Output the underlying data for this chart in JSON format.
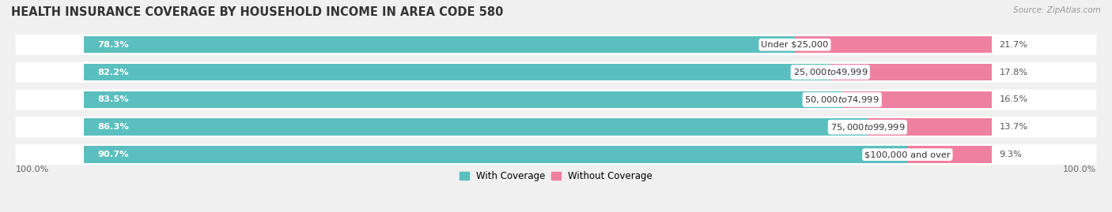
{
  "title": "HEALTH INSURANCE COVERAGE BY HOUSEHOLD INCOME IN AREA CODE 580",
  "source": "Source: ZipAtlas.com",
  "categories": [
    "Under $25,000",
    "$25,000 to $49,999",
    "$50,000 to $74,999",
    "$75,000 to $99,999",
    "$100,000 and over"
  ],
  "with_coverage": [
    78.3,
    82.2,
    83.5,
    86.3,
    90.7
  ],
  "without_coverage": [
    21.7,
    17.8,
    16.5,
    13.7,
    9.3
  ],
  "color_with": "#5BBFBF",
  "color_without": "#F080A0",
  "bar_height": 0.62,
  "bg_color": "#f0f0f0",
  "bar_bg_color": "#ffffff",
  "title_fontsize": 10.5,
  "label_fontsize": 8.2,
  "pct_fontsize": 8.2,
  "tick_fontsize": 8,
  "legend_fontsize": 8.5,
  "x_left_label": "100.0%",
  "x_right_label": "100.0%"
}
